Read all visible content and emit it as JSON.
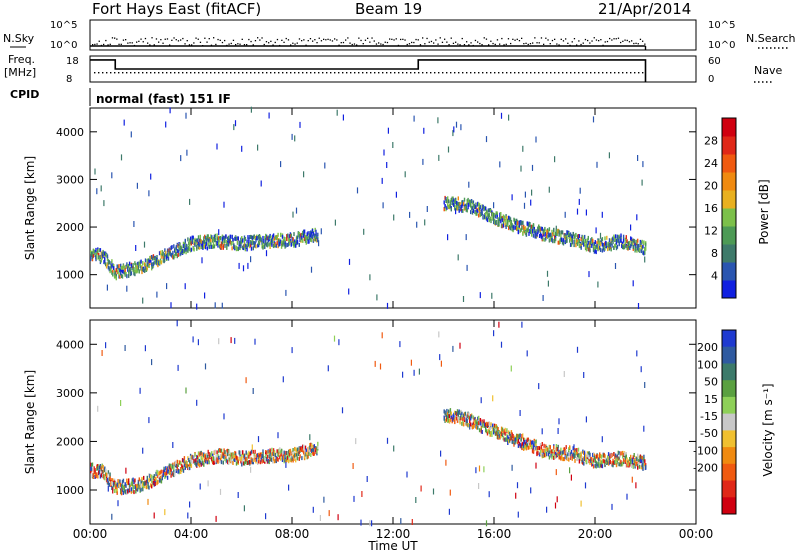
{
  "header": {
    "station": "Fort Hays East (fitACF)",
    "beam": "Beam 19",
    "date": "21/Apr/2014"
  },
  "top_panels": {
    "nsky_label": "N.Sky",
    "nsearch_label": "N.Search",
    "freq_label_1": "Freq.",
    "freq_label_2": "[MHz]",
    "nave_label": "Nave",
    "cpid_label": "CPID",
    "nsky_ticks": [
      "10^5",
      "10^0"
    ],
    "nsearch_ticks": [
      "10^5",
      "10^0"
    ],
    "freq_ticks": [
      "18",
      "8"
    ],
    "nave_ticks": [
      "60",
      "0"
    ],
    "cpid_text": "normal (fast) 151 IF"
  },
  "chart_data": [
    {
      "type": "heatmap",
      "title": "",
      "xlabel": "Time UT",
      "ylabel": "Slant Range [km]",
      "xlim": [
        0,
        24
      ],
      "ylim": [
        300,
        4500
      ],
      "x_ticks": [
        "00:00",
        "04:00",
        "08:00",
        "12:00",
        "16:00",
        "20:00",
        "00:00"
      ],
      "y_ticks": [
        "1000",
        "2000",
        "3000",
        "4000"
      ],
      "colorbar_label": "Power [dB]",
      "colorbar_ticks": [
        "4",
        "8",
        "12",
        "16",
        "20",
        "24",
        "28"
      ],
      "colorbar_range": [
        0,
        30
      ],
      "colorbar_colors": [
        "#1020e0",
        "#2a55b0",
        "#3e7a6a",
        "#4d9a55",
        "#7cc04a",
        "#e8b020",
        "#f08a10",
        "#f05a10",
        "#e02818",
        "#d00010"
      ],
      "echo_band": [
        {
          "t": 0.0,
          "range_km": 1430
        },
        {
          "t": 0.5,
          "range_km": 1380
        },
        {
          "t": 1.0,
          "range_km": 1050
        },
        {
          "t": 2.0,
          "range_km": 1150
        },
        {
          "t": 3.0,
          "range_km": 1400
        },
        {
          "t": 4.0,
          "range_km": 1650
        },
        {
          "t": 5.0,
          "range_km": 1700
        },
        {
          "t": 6.0,
          "range_km": 1650
        },
        {
          "t": 7.0,
          "range_km": 1700
        },
        {
          "t": 8.0,
          "range_km": 1720
        },
        {
          "t": 9.0,
          "range_km": 1850
        },
        {
          "t": 14.0,
          "range_km": 2500
        },
        {
          "t": 15.0,
          "range_km": 2450
        },
        {
          "t": 16.0,
          "range_km": 2200
        },
        {
          "t": 17.0,
          "range_km": 2000
        },
        {
          "t": 18.0,
          "range_km": 1850
        },
        {
          "t": 19.0,
          "range_km": 1750
        },
        {
          "t": 20.0,
          "range_km": 1600
        },
        {
          "t": 21.0,
          "range_km": 1700
        },
        {
          "t": 22.0,
          "range_km": 1550
        }
      ]
    },
    {
      "type": "heatmap",
      "title": "",
      "xlabel": "Time UT",
      "ylabel": "Slant Range [km]",
      "xlim": [
        0,
        24
      ],
      "ylim": [
        300,
        4500
      ],
      "x_ticks": [
        "00:00",
        "04:00",
        "08:00",
        "12:00",
        "16:00",
        "20:00",
        "00:00"
      ],
      "y_ticks": [
        "1000",
        "2000",
        "3000",
        "4000"
      ],
      "colorbar_label": "Velocity [m s⁻¹]",
      "colorbar_ticks": [
        "200",
        "100",
        "50",
        "15",
        "-15",
        "-50",
        "-100",
        "-200"
      ],
      "colorbar_colors": [
        "#1f3ad0",
        "#2f5aa0",
        "#3c7a6a",
        "#5aa040",
        "#8ed058",
        "#c8c8c8",
        "#f0c030",
        "#f08a10",
        "#f05a10",
        "#e02818",
        "#d00010"
      ],
      "echo_band": [
        {
          "t": 0.0,
          "range_km": 1400
        },
        {
          "t": 0.5,
          "range_km": 1380
        },
        {
          "t": 1.0,
          "range_km": 1050
        },
        {
          "t": 2.0,
          "range_km": 1100
        },
        {
          "t": 3.0,
          "range_km": 1350
        },
        {
          "t": 4.0,
          "range_km": 1600
        },
        {
          "t": 5.0,
          "range_km": 1700
        },
        {
          "t": 6.0,
          "range_km": 1650
        },
        {
          "t": 7.0,
          "range_km": 1700
        },
        {
          "t": 8.0,
          "range_km": 1720
        },
        {
          "t": 9.0,
          "range_km": 1850
        },
        {
          "t": 14.0,
          "range_km": 2550
        },
        {
          "t": 15.0,
          "range_km": 2450
        },
        {
          "t": 16.0,
          "range_km": 2200
        },
        {
          "t": 17.0,
          "range_km": 2000
        },
        {
          "t": 18.0,
          "range_km": 1800
        },
        {
          "t": 19.0,
          "range_km": 1750
        },
        {
          "t": 20.0,
          "range_km": 1600
        },
        {
          "t": 21.0,
          "range_km": 1650
        },
        {
          "t": 22.0,
          "range_km": 1550
        }
      ]
    }
  ],
  "frequency_trace": {
    "ylim": [
      8,
      18
    ],
    "steps": [
      {
        "t": 0.0,
        "mhz": 16.5
      },
      {
        "t": 1.0,
        "mhz": 13.0
      },
      {
        "t": 13.0,
        "mhz": 16.5
      },
      {
        "t": 22.0,
        "mhz": 16.5
      }
    ]
  }
}
